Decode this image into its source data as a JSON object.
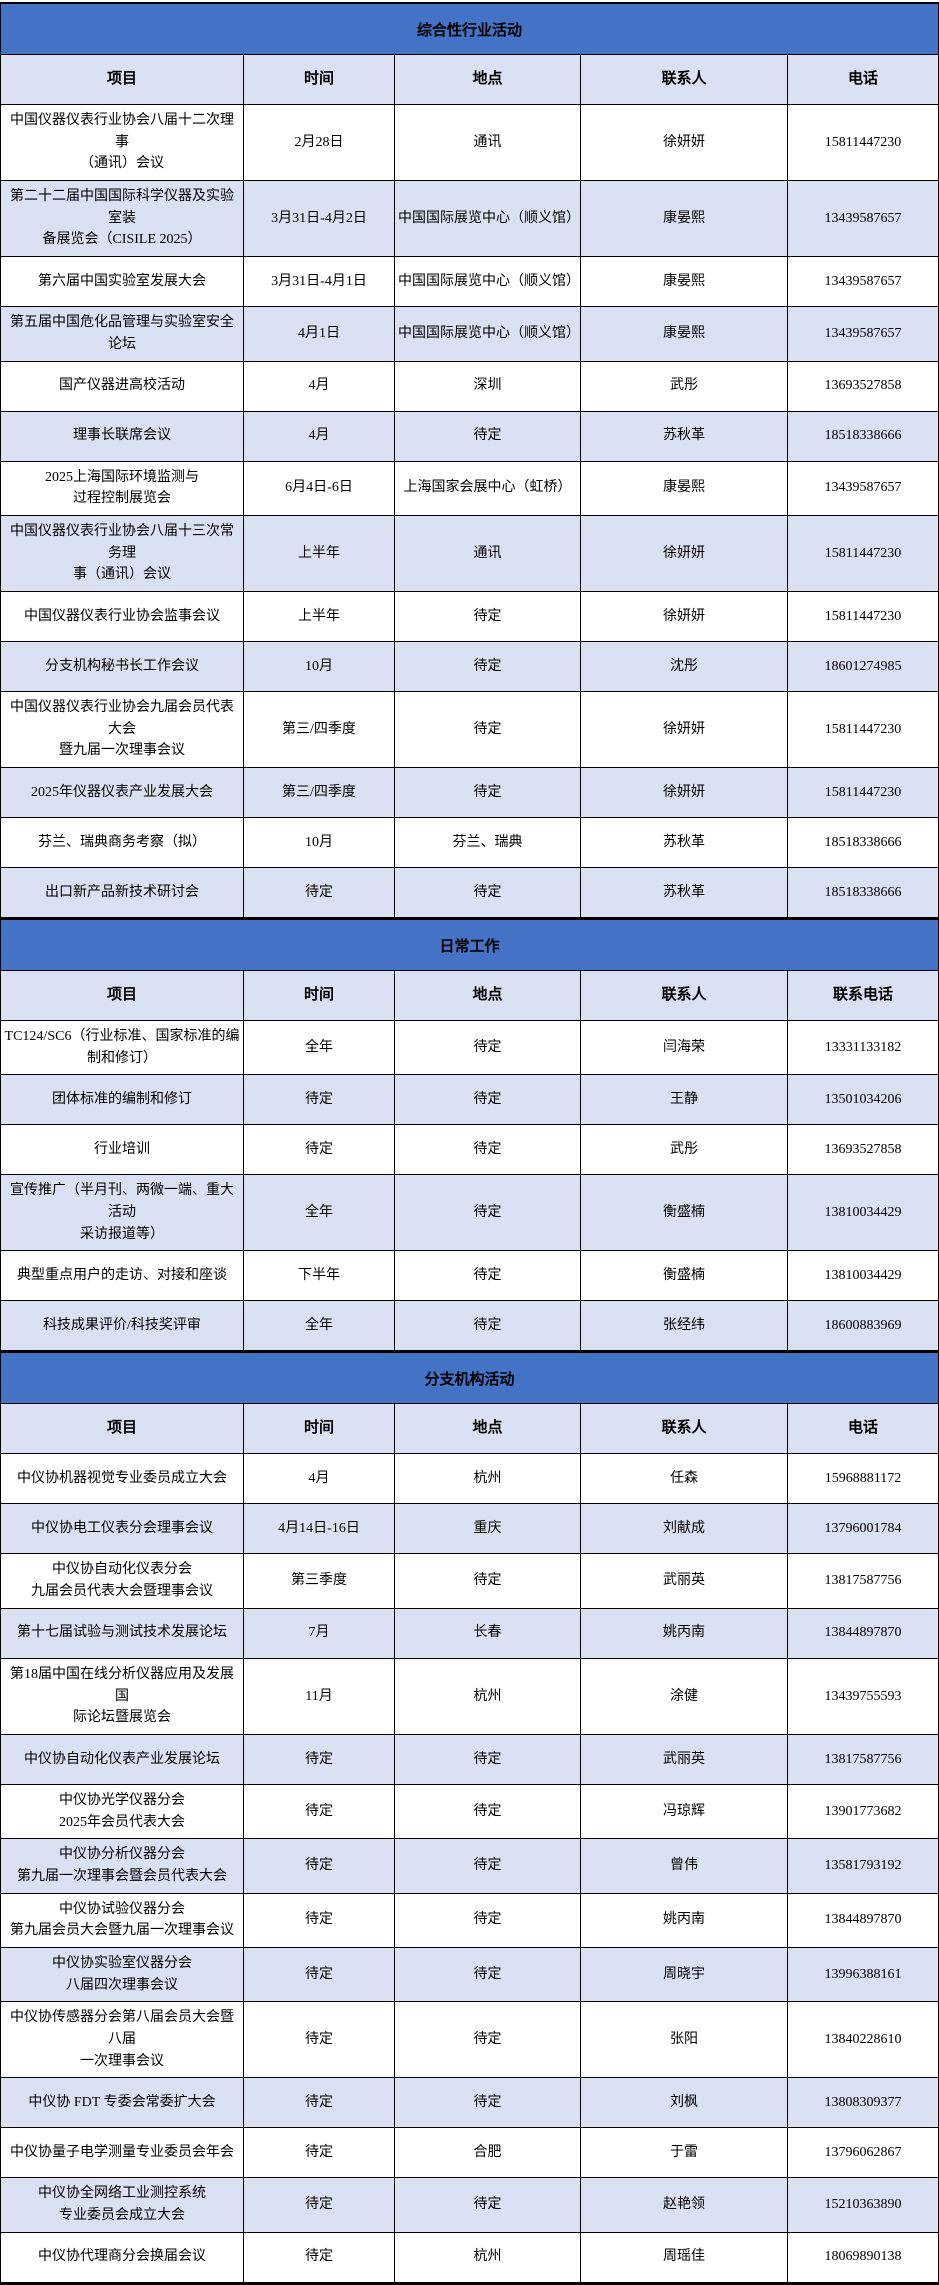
{
  "colors": {
    "band_blue": "#4472C4",
    "row_alt": "#D9E1F2",
    "border": "#000000",
    "text": "#000000"
  },
  "sections": [
    {
      "title": "综合性行业活动",
      "columns": [
        "项目",
        "时间",
        "地点",
        "联系人",
        "电话"
      ],
      "rows": [
        {
          "project": "中国仪器仪表行业协会八届十二次理事\n（通讯）会议",
          "time": "2月28日",
          "location": "通讯",
          "contact": "徐妍妍",
          "phone": "15811447230"
        },
        {
          "project": "第二十二届中国国际科学仪器及实验室装\n备展览会（CISILE 2025）",
          "time": "3月31日-4月2日",
          "location": "中国国际展览中心（顺义馆）",
          "contact": "康晏熙",
          "phone": "13439587657"
        },
        {
          "project": "第六届中国实验室发展大会",
          "time": "3月31日-4月1日",
          "location": "中国国际展览中心（顺义馆）",
          "contact": "康晏熙",
          "phone": "13439587657"
        },
        {
          "project": "第五届中国危化品管理与实验室安全论坛",
          "time": "4月1日",
          "location": "中国国际展览中心（顺义馆）",
          "contact": "康晏熙",
          "phone": "13439587657"
        },
        {
          "project": "国产仪器进高校活动",
          "time": "4月",
          "location": "深圳",
          "contact": "武彤",
          "phone": "13693527858"
        },
        {
          "project": "理事长联席会议",
          "time": "4月",
          "location": "待定",
          "contact": "苏秋革",
          "phone": "18518338666"
        },
        {
          "project": "2025上海国际环境监测与\n过程控制展览会",
          "time": "6月4日-6日",
          "location": "上海国家会展中心（虹桥）",
          "contact": "康晏熙",
          "phone": "13439587657"
        },
        {
          "project": "中国仪器仪表行业协会八届十三次常务理\n事（通讯）会议",
          "time": "上半年",
          "location": "通讯",
          "contact": "徐妍妍",
          "phone": "15811447230"
        },
        {
          "project": "中国仪器仪表行业协会监事会议",
          "time": "上半年",
          "location": "待定",
          "contact": "徐妍妍",
          "phone": "15811447230"
        },
        {
          "project": "分支机构秘书长工作会议",
          "time": "10月",
          "location": "待定",
          "contact": "沈彤",
          "phone": "18601274985"
        },
        {
          "project": "中国仪器仪表行业协会九届会员代表大会\n暨九届一次理事会议",
          "time": "第三/四季度",
          "location": "待定",
          "contact": "徐妍妍",
          "phone": "15811447230"
        },
        {
          "project": "2025年仪器仪表产业发展大会",
          "time": "第三/四季度",
          "location": "待定",
          "contact": "徐妍妍",
          "phone": "15811447230"
        },
        {
          "project": "芬兰、瑞典商务考察（拟）",
          "time": "10月",
          "location": "芬兰、瑞典",
          "contact": "苏秋革",
          "phone": "18518338666"
        },
        {
          "project": "出口新产品新技术研讨会",
          "time": "待定",
          "location": "待定",
          "contact": "苏秋革",
          "phone": "18518338666"
        }
      ]
    },
    {
      "title": "日常工作",
      "columns": [
        "项目",
        "时间",
        "地点",
        "联系人",
        "联系电话"
      ],
      "rows": [
        {
          "project": "TC124/SC6（行业标准、国家标准的编\n制和修订）",
          "time": "全年",
          "location": "待定",
          "contact": "闫海荣",
          "phone": "13331133182"
        },
        {
          "project": "团体标准的编制和修订",
          "time": "待定",
          "location": "待定",
          "contact": "王静",
          "phone": "13501034206"
        },
        {
          "project": "行业培训",
          "time": "待定",
          "location": "待定",
          "contact": "武彤",
          "phone": "13693527858"
        },
        {
          "project": "宣传推广（半月刊、两微一端、重大活动\n采访报道等）",
          "time": "全年",
          "location": "待定",
          "contact": "衡盛楠",
          "phone": "13810034429"
        },
        {
          "project": "典型重点用户的走访、对接和座谈",
          "time": "下半年",
          "location": "待定",
          "contact": "衡盛楠",
          "phone": "13810034429"
        },
        {
          "project": "科技成果评价/科技奖评审",
          "time": "全年",
          "location": "待定",
          "contact": "张经纬",
          "phone": "18600883969"
        }
      ]
    },
    {
      "title": "分支机构活动",
      "columns": [
        "项目",
        "时间",
        "地点",
        "联系人",
        "电话"
      ],
      "rows": [
        {
          "project": "中仪协机器视觉专业委员成立大会",
          "time": "4月",
          "location": "杭州",
          "contact": "任森",
          "phone": "15968881172"
        },
        {
          "project": "中仪协电工仪表分会理事会议",
          "time": "4月14日-16日",
          "location": "重庆",
          "contact": "刘献成",
          "phone": "13796001784"
        },
        {
          "project": "中仪协自动化仪表分会\n九届会员代表大会暨理事会议",
          "time": "第三季度",
          "location": "待定",
          "contact": "武丽英",
          "phone": "13817587756"
        },
        {
          "project": "第十七届试验与测试技术发展论坛",
          "time": "7月",
          "location": "长春",
          "contact": "姚丙南",
          "phone": "13844897870"
        },
        {
          "project": "第18届中国在线分析仪器应用及发展国\n际论坛暨展览会",
          "time": "11月",
          "location": "杭州",
          "contact": "涂健",
          "phone": "13439755593"
        },
        {
          "project": "中仪协自动化仪表产业发展论坛",
          "time": "待定",
          "location": "待定",
          "contact": "武丽英",
          "phone": "13817587756"
        },
        {
          "project": "中仪协光学仪器分会\n2025年会员代表大会",
          "time": "待定",
          "location": "待定",
          "contact": "冯琼辉",
          "phone": "13901773682"
        },
        {
          "project": "中仪协分析仪器分会\n第九届一次理事会暨会员代表大会",
          "time": "待定",
          "location": "待定",
          "contact": "曾伟",
          "phone": "13581793192"
        },
        {
          "project": "中仪协试验仪器分会\n第九届会员大会暨九届一次理事会议",
          "time": "待定",
          "location": "待定",
          "contact": "姚丙南",
          "phone": "13844897870"
        },
        {
          "project": "中仪协实验室仪器分会\n八届四次理事会议",
          "time": "待定",
          "location": "待定",
          "contact": "周晓宇",
          "phone": "13996388161"
        },
        {
          "project": "中仪协传感器分会第八届会员大会暨八届\n一次理事会议",
          "time": "待定",
          "location": "待定",
          "contact": "张阳",
          "phone": "13840228610"
        },
        {
          "project": "中仪协 FDT 专委会常委扩大会",
          "time": "待定",
          "location": "待定",
          "contact": "刘枫",
          "phone": "13808309377"
        },
        {
          "project": "中仪协量子电学测量专业委员会年会",
          "time": "待定",
          "location": "合肥",
          "contact": "于雷",
          "phone": "13796062867"
        },
        {
          "project": "中仪协全网络工业测控系统\n专业委员会成立大会",
          "time": "待定",
          "location": "待定",
          "contact": "赵艳领",
          "phone": "15210363890"
        },
        {
          "project": "中仪协代理商分会换届会议",
          "time": "待定",
          "location": "杭州",
          "contact": "周瑶佳",
          "phone": "18069890138"
        }
      ]
    }
  ]
}
